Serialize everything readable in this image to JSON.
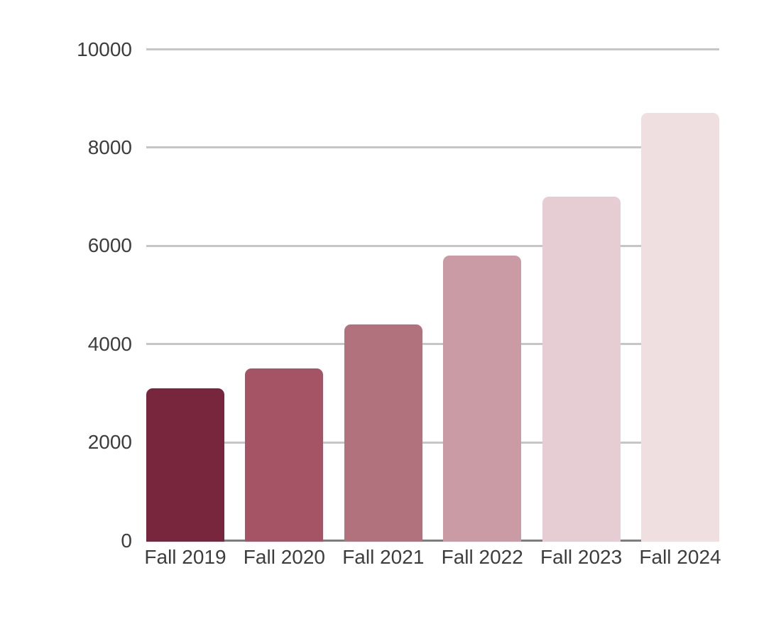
{
  "chart_data": {
    "type": "bar",
    "title": "",
    "xlabel": "",
    "ylabel": "",
    "categories": [
      "Fall 2019",
      "Fall 2020",
      "Fall 2021",
      "Fall 2022",
      "Fall 2023",
      "Fall 2024"
    ],
    "values": [
      3100,
      3500,
      4400,
      5800,
      7000,
      8700
    ],
    "ylim": [
      0,
      10000
    ],
    "yticks": [
      0,
      2000,
      4000,
      6000,
      8000,
      10000
    ],
    "grid": true,
    "legend": false,
    "bar_colors": [
      "#77263D",
      "#A55465",
      "#B2727D",
      "#CA9BA4",
      "#E6CCD3",
      "#F0DFE1"
    ],
    "gridline_color": "#c6c6c6",
    "baseline_color": "#7d7d7d",
    "text_color": "#3d3d3d",
    "background_color": "#ffffff"
  }
}
